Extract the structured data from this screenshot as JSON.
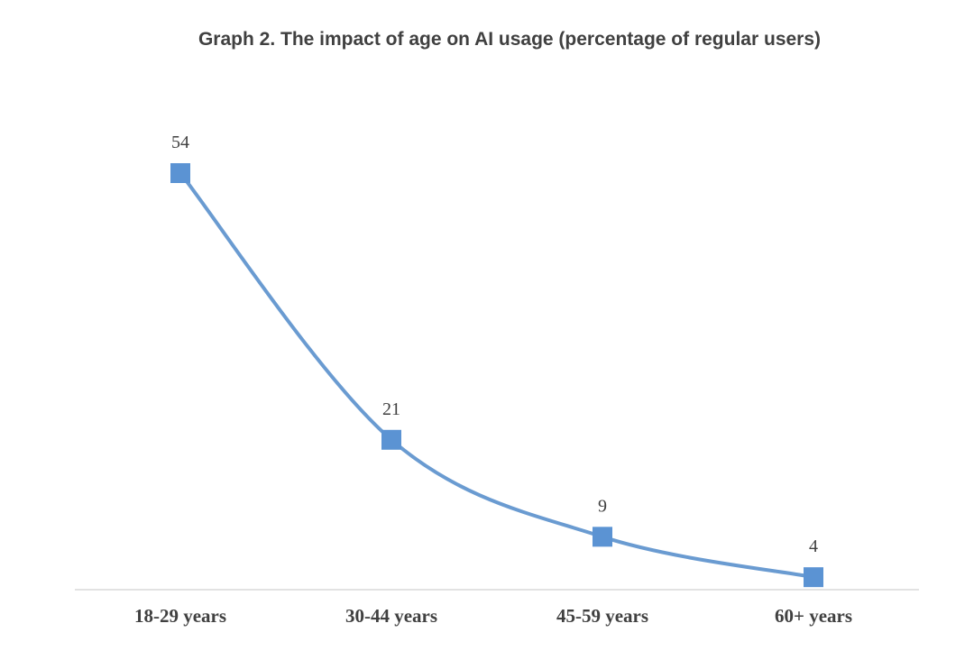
{
  "chart_data": {
    "type": "line",
    "title": "Graph 2. The impact of age on AI usage (percentage of regular users)",
    "categories": [
      "18-29 years",
      "30-44 years",
      "45-59 years",
      "60+ years"
    ],
    "series": [
      {
        "values": [
          54,
          21,
          9,
          4
        ]
      }
    ],
    "ylim": [
      0,
      54
    ],
    "grid": false,
    "legend": "none",
    "data_labels": true,
    "line_style": "smooth",
    "marker": "square",
    "colors": {
      "series": "#6A9BD1",
      "marker": "#5B93D3",
      "axis": "#D9D9D9",
      "text": "#404040"
    }
  }
}
